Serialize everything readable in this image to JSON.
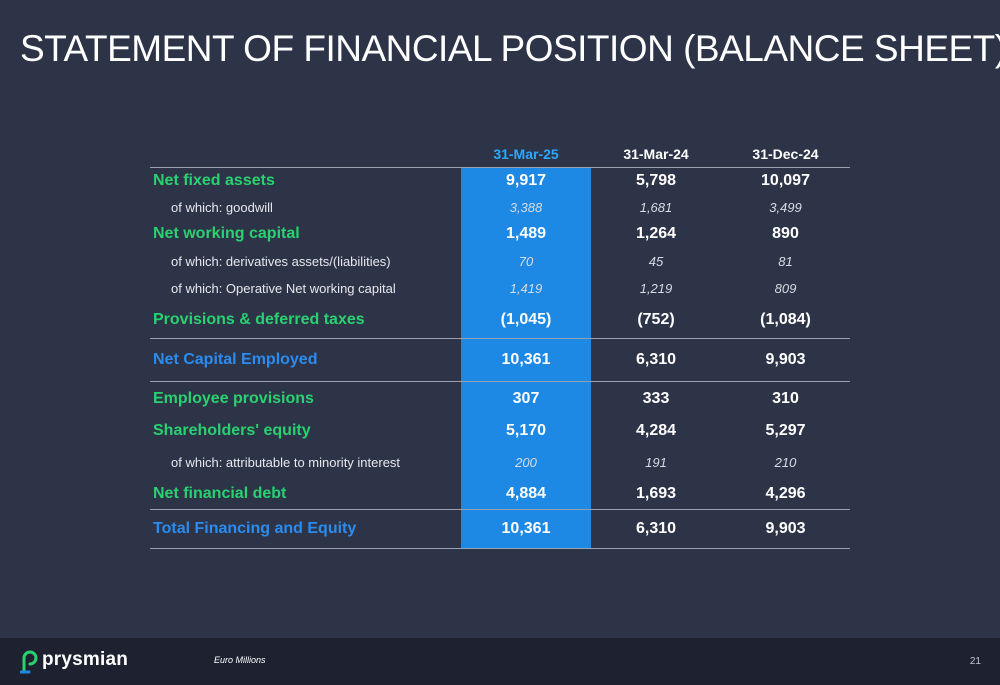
{
  "title": "STATEMENT OF FINANCIAL POSITION (BALANCE SHEET)",
  "table": {
    "headers": [
      "",
      "31-Mar-25",
      "31-Mar-24",
      "31-Dec-24"
    ],
    "rows": [
      {
        "label": "Net fixed assets",
        "v1": "9,917",
        "v2": "5,798",
        "v3": "10,097"
      },
      {
        "label": "of which: goodwill",
        "v1": "3,388",
        "v2": "1,681",
        "v3": "3,499"
      },
      {
        "label": "Net working capital",
        "v1": "1,489",
        "v2": "1,264",
        "v3": "890"
      },
      {
        "label": "of which: derivatives assets/(liabilities)",
        "v1": "70",
        "v2": "45",
        "v3": "81"
      },
      {
        "label": "of which: Operative Net working capital",
        "v1": "1,419",
        "v2": "1,219",
        "v3": "809"
      },
      {
        "label": "Provisions & deferred taxes",
        "v1": "(1,045)",
        "v2": "(752)",
        "v3": "(1,084)"
      },
      {
        "label": "Net Capital Employed",
        "v1": "10,361",
        "v2": "6,310",
        "v3": "9,903"
      },
      {
        "label": "Employee provisions",
        "v1": "307",
        "v2": "333",
        "v3": "310"
      },
      {
        "label": "Shareholders' equity",
        "v1": "5,170",
        "v2": "4,284",
        "v3": "5,297"
      },
      {
        "label": "of which: attributable to minority interest",
        "v1": "200",
        "v2": "191",
        "v3": "210"
      },
      {
        "label": "Net financial debt",
        "v1": "4,884",
        "v2": "1,693",
        "v3": "4,296"
      },
      {
        "label": "Total Financing and Equity",
        "v1": "10,361",
        "v2": "6,310",
        "v3": "9,903"
      }
    ]
  },
  "footer": {
    "logo_text": "prysmian",
    "unit_note": "Euro Millions",
    "page_number": "21"
  },
  "colors": {
    "background": "#2e3447",
    "highlight_column": "#1e88e5",
    "green_label": "#29d170",
    "blue_label": "#2b8cf0",
    "footer_bg": "#1e2230"
  },
  "icons": {
    "logo": "prysmian-logo-icon"
  }
}
